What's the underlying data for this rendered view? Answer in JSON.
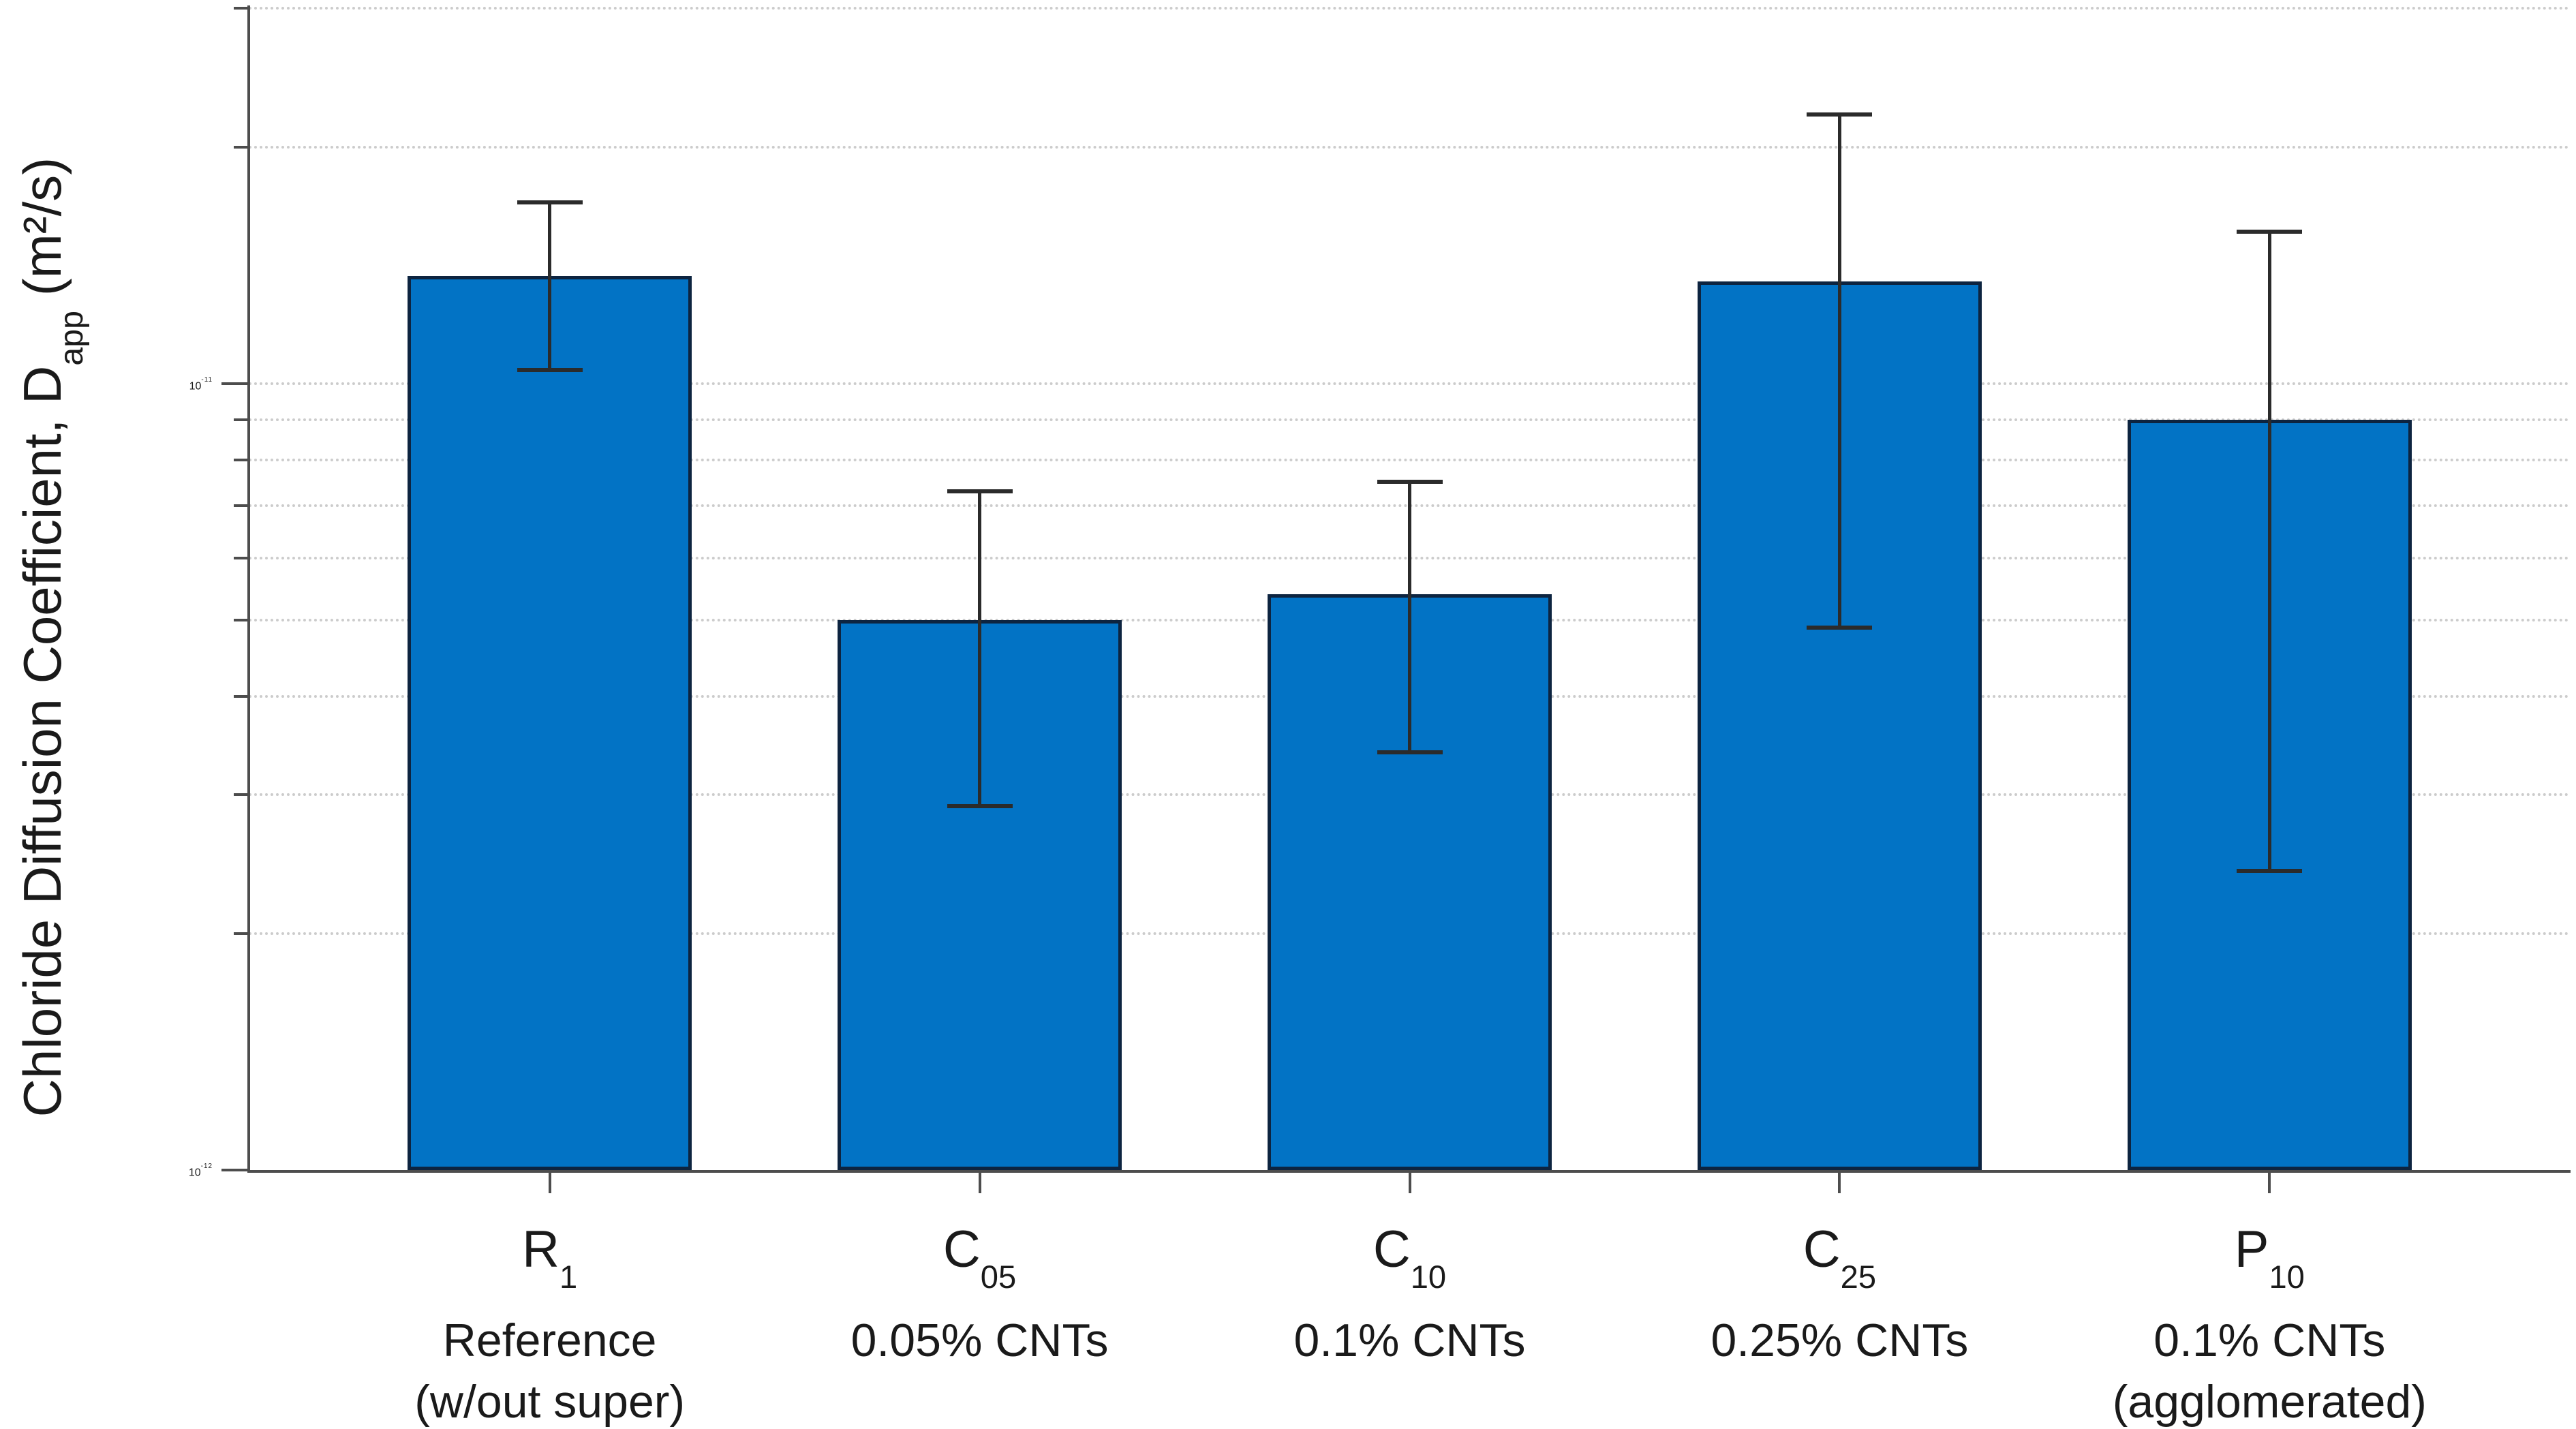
{
  "figure": {
    "background": "#ffffff",
    "bar_fill": "#0273c5",
    "bar_edge": "#0d2440",
    "error_color": "#2b2b2b",
    "axis_color": "#4d4d4d",
    "grid_color": "#cccccc",
    "text_color": "#1a1a1a"
  },
  "y_axis": {
    "label_prefix": "Chloride Diffusion Coefficient, D",
    "label_sub": "app",
    "label_suffix": " (m²/s)",
    "major_ticks": [
      {
        "base": "10",
        "exp": "-11",
        "value": 1e-11
      },
      {
        "base": "10",
        "exp": "-12",
        "value": 1e-12
      }
    ],
    "minor_gridline_values": [
      3e-11,
      2e-11,
      1e-11,
      9e-12,
      8e-12,
      7e-12,
      6e-12,
      5e-12,
      4e-12,
      3e-12,
      2e-12
    ]
  },
  "chart_data": {
    "type": "bar",
    "y_scale": "log",
    "ylim": [
      1e-12,
      3.05e-11
    ],
    "ylabel": "Chloride Diffusion Coefficient, D_app (m²/s)",
    "xlabel": "",
    "title": "",
    "legend": "none",
    "grid": "horizontal dotted minor gridlines (log decades)",
    "categories": [
      {
        "tick": "R",
        "tick_sub": "1",
        "desc": "Reference",
        "desc2": "(w/out super)"
      },
      {
        "tick": "C",
        "tick_sub": "05",
        "desc": "0.05% CNTs",
        "desc2": ""
      },
      {
        "tick": "C",
        "tick_sub": "10",
        "desc": "0.1% CNTs",
        "desc2": ""
      },
      {
        "tick": "C",
        "tick_sub": "25",
        "desc": "0.25% CNTs",
        "desc2": ""
      },
      {
        "tick": "P",
        "tick_sub": "10",
        "desc": "0.1% CNTs",
        "desc2": "(agglomerated)"
      }
    ],
    "values": [
      1.37e-11,
      5e-12,
      5.4e-12,
      1.35e-11,
      9e-12
    ],
    "error_high": [
      1.7e-11,
      7.3e-12,
      7.5e-12,
      2.2e-11,
      1.56e-11
    ],
    "error_low": [
      1.04e-11,
      2.9e-12,
      3.4e-12,
      4.9e-12,
      2.4e-12
    ]
  }
}
